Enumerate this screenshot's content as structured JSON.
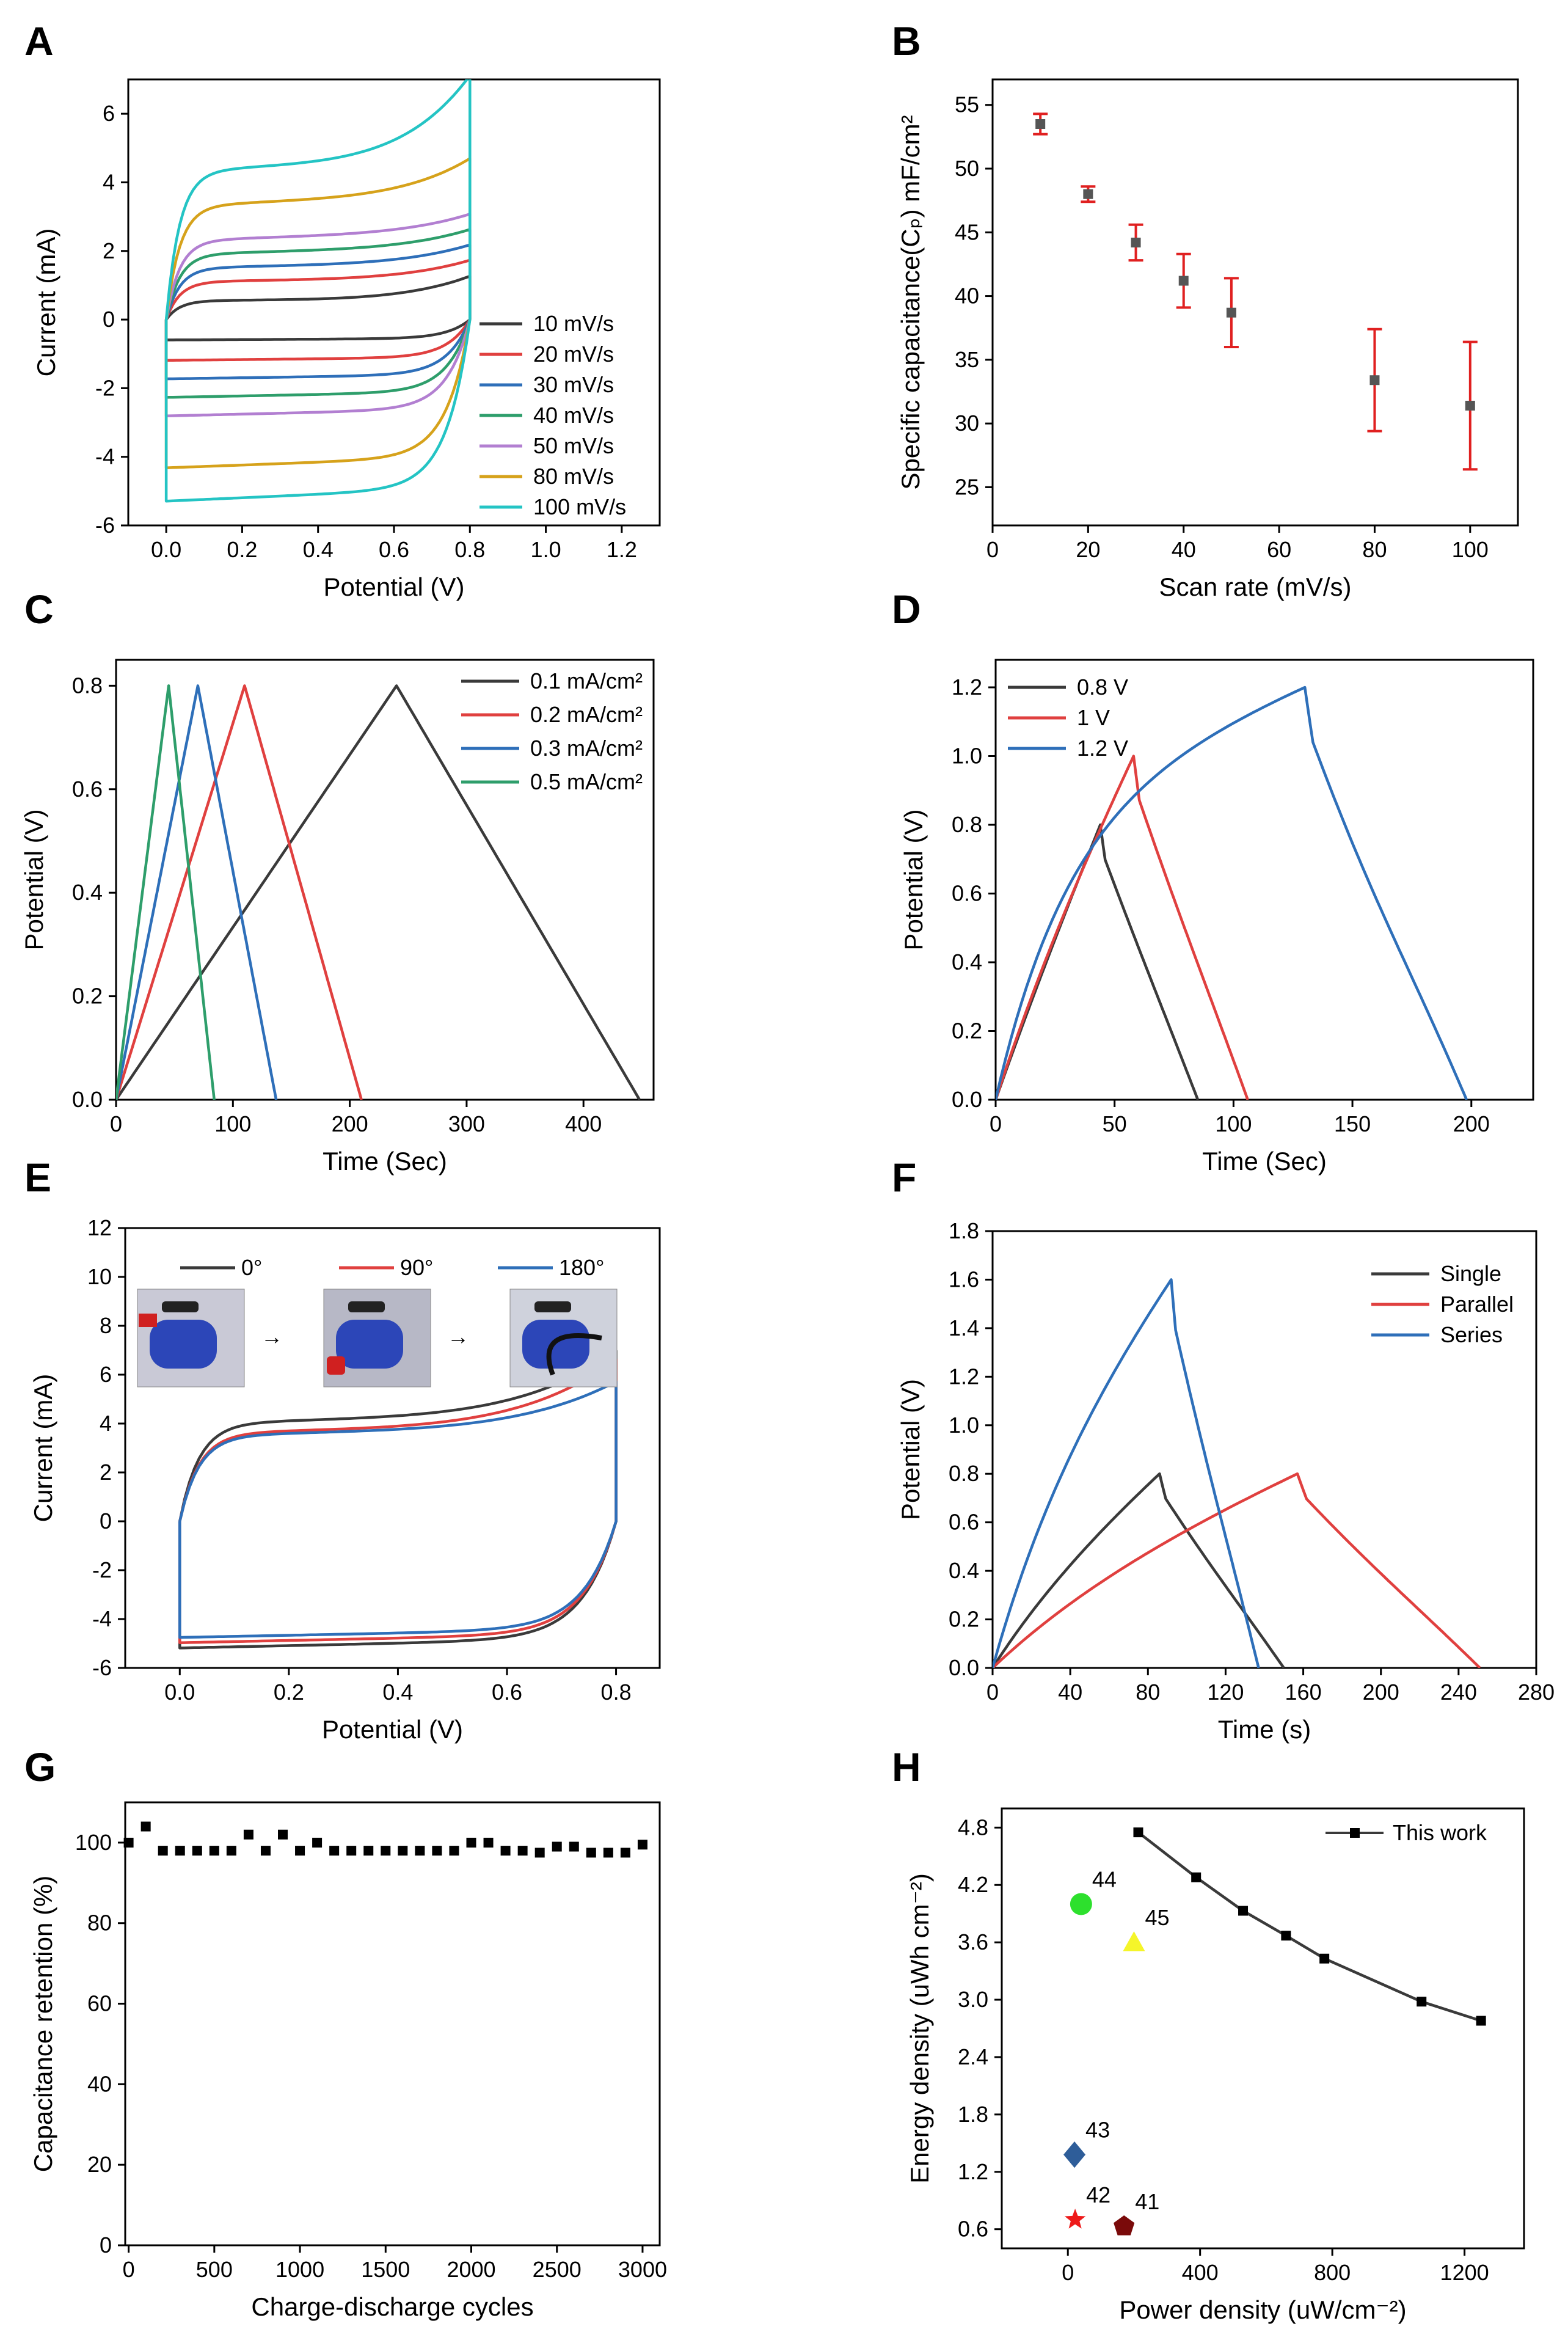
{
  "colors": {
    "black": "#3a3a3a",
    "red": "#e0403f",
    "blue": "#2e6fb9",
    "green": "#2e9e6b",
    "purple": "#b27fd1",
    "gold": "#d6a21b",
    "cyan": "#24c4c4",
    "errorbar": "#e02020",
    "marker": "#555555"
  },
  "chart_data": [
    {
      "panel": "A",
      "type": "line",
      "xlabel": "Potential (V)",
      "ylabel": "Current (mA)",
      "xlim": [
        -0.1,
        1.3
      ],
      "ylim": [
        -6,
        7
      ],
      "xticks": [
        "0.0",
        "0.2",
        "0.4",
        "0.6",
        "0.8",
        "1.0",
        "1.2"
      ],
      "yticks": [
        "-6",
        "-4",
        "-2",
        "0",
        "2",
        "4",
        "6"
      ],
      "legend_position": "right",
      "series": [
        {
          "name": "10 mV/s",
          "color": "black",
          "cv": {
            "top": 0.55,
            "bottom": -0.55,
            "end_top": 1.2
          }
        },
        {
          "name": "20 mV/s",
          "color": "red",
          "cv": {
            "top": 1.1,
            "bottom": -1.1,
            "end_top": 1.6
          }
        },
        {
          "name": "30 mV/s",
          "color": "blue",
          "cv": {
            "top": 1.5,
            "bottom": -1.6,
            "end_top": 2.0
          }
        },
        {
          "name": "40 mV/s",
          "color": "green",
          "cv": {
            "top": 1.9,
            "bottom": -2.1,
            "end_top": 2.4
          }
        },
        {
          "name": "50 mV/s",
          "color": "purple",
          "cv": {
            "top": 2.3,
            "bottom": -2.6,
            "end_top": 2.8
          }
        },
        {
          "name": "80 mV/s",
          "color": "gold",
          "cv": {
            "top": 3.3,
            "bottom": -4.0,
            "end_top": 4.3
          }
        },
        {
          "name": "100 mV/s",
          "color": "cyan",
          "cv": {
            "top": 4.3,
            "bottom": -4.9,
            "end_top": 6.6
          }
        }
      ]
    },
    {
      "panel": "B",
      "type": "scatter",
      "xlabel": "Scan rate (mV/s)",
      "ylabel": "Specific capacitance(Cₚ) mF/cm²",
      "xlim": [
        0,
        110
      ],
      "ylim": [
        22,
        57
      ],
      "xticks": [
        "0",
        "20",
        "40",
        "60",
        "80",
        "100"
      ],
      "yticks": [
        "25",
        "30",
        "35",
        "40",
        "45",
        "50",
        "55"
      ],
      "x": [
        10,
        20,
        30,
        40,
        50,
        80,
        100
      ],
      "y": [
        53.5,
        48.0,
        44.2,
        41.2,
        38.7,
        33.4,
        31.4
      ],
      "error": [
        0.8,
        0.6,
        1.4,
        2.1,
        2.7,
        4.0,
        5.0
      ]
    },
    {
      "panel": "C",
      "type": "line",
      "xlabel": "Time (Sec)",
      "ylabel": "Potential (V)",
      "xlim": [
        0,
        460
      ],
      "ylim": [
        0,
        0.85
      ],
      "xticks": [
        "0",
        "100",
        "200",
        "300",
        "400"
      ],
      "yticks": [
        "0.0",
        "0.2",
        "0.4",
        "0.6",
        "0.8"
      ],
      "legend_position": "top-right",
      "series": [
        {
          "name": "0.1 mA/cm²",
          "color": "black",
          "peak_t": 240,
          "end_t": 448,
          "vmax": 0.8
        },
        {
          "name": "0.2 mA/cm²",
          "color": "red",
          "peak_t": 110,
          "end_t": 210,
          "vmax": 0.8
        },
        {
          "name": "0.3 mA/cm²",
          "color": "blue",
          "peak_t": 70,
          "end_t": 137,
          "vmax": 0.8
        },
        {
          "name": "0.5 mA/cm²",
          "color": "green",
          "peak_t": 45,
          "end_t": 84,
          "vmax": 0.8
        }
      ]
    },
    {
      "panel": "D",
      "type": "line",
      "xlabel": "Time (Sec)",
      "ylabel": "Potential (V)",
      "xlim": [
        0,
        226
      ],
      "ylim": [
        0,
        1.28
      ],
      "xticks": [
        "0",
        "50",
        "100",
        "150",
        "200"
      ],
      "yticks": [
        "0.0",
        "0.2",
        "0.4",
        "0.6",
        "0.8",
        "1.0",
        "1.2"
      ],
      "legend_position": "top-left",
      "series": [
        {
          "name": "0.8 V",
          "color": "black",
          "peak_t": 44,
          "end_t": 85,
          "vmax": 0.8,
          "curv": 0.15
        },
        {
          "name": "1 V",
          "color": "red",
          "peak_t": 58,
          "end_t": 106,
          "vmax": 1.0,
          "curv": 0.25
        },
        {
          "name": "1.2 V",
          "color": "blue",
          "peak_t": 130,
          "end_t": 198,
          "vmax": 1.2,
          "curv": 0.7
        }
      ]
    },
    {
      "panel": "E",
      "type": "line",
      "xlabel": "Potential (V)",
      "ylabel": "Current (mA)",
      "xlim": [
        -0.1,
        0.88
      ],
      "ylim": [
        -6,
        12
      ],
      "xticks": [
        "0.0",
        "0.2",
        "0.4",
        "0.6",
        "0.8"
      ],
      "yticks": [
        "-6",
        "-4",
        "-2",
        "0",
        "2",
        "4",
        "6",
        "8",
        "10",
        "12"
      ],
      "legend_position": "top",
      "series": [
        {
          "name": "0°",
          "color": "black",
          "cv": {
            "top": 4.0,
            "bottom": -4.8,
            "end_top": 6.5
          }
        },
        {
          "name": "90°",
          "color": "red",
          "cv": {
            "top": 3.6,
            "bottom": -4.6,
            "end_top": 6.2
          }
        },
        {
          "name": "180°",
          "color": "blue",
          "cv": {
            "top": 3.5,
            "bottom": -4.4,
            "end_top": 5.3
          }
        }
      ]
    },
    {
      "panel": "F",
      "type": "line",
      "xlabel": "Time (s)",
      "ylabel": "Potential (V)",
      "xlim": [
        0,
        280
      ],
      "ylim": [
        0,
        1.8
      ],
      "xticks": [
        "0",
        "40",
        "80",
        "120",
        "160",
        "200",
        "240",
        "280"
      ],
      "yticks": [
        "0.0",
        "0.2",
        "0.4",
        "0.6",
        "0.8",
        "1.0",
        "1.2",
        "1.4",
        "1.6",
        "1.8"
      ],
      "legend_position": "top-right",
      "series": [
        {
          "name": "Single",
          "color": "black",
          "peak_t": 86,
          "end_t": 150,
          "vmax": 0.8,
          "curv": 0.3
        },
        {
          "name": "Parallel",
          "color": "red",
          "peak_t": 157,
          "end_t": 251,
          "vmax": 0.8,
          "curv": 0.35
        },
        {
          "name": "Series",
          "color": "blue",
          "peak_t": 92,
          "end_t": 137,
          "vmax": 1.6,
          "curv": 0.4
        }
      ]
    },
    {
      "panel": "G",
      "type": "scatter",
      "xlabel": "Charge-discharge cycles",
      "ylabel": "Capacitance retention (%)",
      "xlim": [
        -20,
        3100
      ],
      "ylim": [
        0,
        110
      ],
      "xticks": [
        "0",
        "500",
        "1000",
        "1500",
        "2000",
        "2500",
        "3000"
      ],
      "yticks": [
        "0",
        "20",
        "40",
        "60",
        "80",
        "100"
      ],
      "x": [
        0,
        100,
        200,
        300,
        400,
        500,
        600,
        700,
        800,
        900,
        1000,
        1100,
        1200,
        1300,
        1400,
        1500,
        1600,
        1700,
        1800,
        1900,
        2000,
        2100,
        2200,
        2300,
        2400,
        2500,
        2600,
        2700,
        2800,
        2900,
        3000
      ],
      "y": [
        100,
        104,
        98,
        98,
        98,
        98,
        98,
        102,
        98,
        102,
        98,
        100,
        98,
        98,
        98,
        98,
        98,
        98,
        98,
        98,
        100,
        100,
        98,
        98,
        97.5,
        99,
        99,
        97.5,
        97.5,
        97.5,
        99.5
      ]
    },
    {
      "panel": "H",
      "type": "scatter",
      "xlabel": "Power density (uW/cm⁻²)",
      "ylabel": "Energy density (uWh cm⁻²)",
      "xlim": [
        -200,
        1380
      ],
      "ylim": [
        0.4,
        5.0
      ],
      "xticks": [
        "0",
        "400",
        "800",
        "1200"
      ],
      "yticks": [
        "0.6",
        "1.2",
        "1.8",
        "2.4",
        "3.0",
        "3.6",
        "4.2",
        "4.8"
      ],
      "legend_position": "top-right",
      "series": [
        {
          "name": "This work",
          "color": "black",
          "x": [
            213,
            388,
            530,
            660,
            776,
            1070,
            1250
          ],
          "y": [
            4.75,
            4.28,
            3.93,
            3.67,
            3.43,
            2.98,
            2.78
          ]
        }
      ],
      "references": [
        {
          "label": "44",
          "shape": "circle",
          "color": "#2de02d",
          "x": 40,
          "y": 4.0
        },
        {
          "label": "45",
          "shape": "triangle",
          "color": "#f5f52a",
          "x": 200,
          "y": 3.6
        },
        {
          "label": "43",
          "shape": "diamond",
          "color": "#2e5d99",
          "x": 20,
          "y": 1.38
        },
        {
          "label": "42",
          "shape": "star",
          "color": "#ee1a1a",
          "x": 22,
          "y": 0.7
        },
        {
          "label": "41",
          "shape": "pentagon",
          "color": "#7a0a0a",
          "x": 170,
          "y": 0.63
        }
      ]
    }
  ],
  "insets": {
    "E": [
      {
        "name": "photo-0deg",
        "arrow": "→"
      },
      {
        "name": "photo-90deg",
        "arrow": "→"
      },
      {
        "name": "photo-180deg",
        "arrow": ""
      }
    ]
  }
}
